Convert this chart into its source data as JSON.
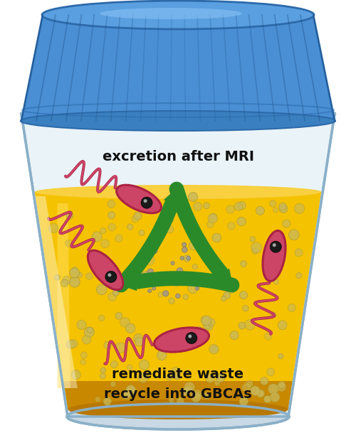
{
  "bg_color": "#ffffff",
  "cup_fill": "#e8f2f8",
  "cup_outline": "#8ab0c8",
  "lid_main": "#4a8fd4",
  "lid_dark": "#2c6aaa",
  "lid_top": "#5a9fe0",
  "lid_rim": "#3a80c0",
  "liquid_yellow": "#f5c200",
  "liquid_mid": "#f0b800",
  "liquid_dark": "#c88800",
  "liquid_bottom_dark": "#b87800",
  "dot_fill": "#c8b85a",
  "dot_edge": "#a89830",
  "nano_fill": "#9090a0",
  "nano_edge": "#606070",
  "bacteria_fill": "#cc4466",
  "bacteria_edge": "#aa2244",
  "recycle_color": "#2a8a2a",
  "text_color": "#111111",
  "text1": "excretion after MRI",
  "text2": "remediate waste",
  "text3": "recycle into GBCAs"
}
